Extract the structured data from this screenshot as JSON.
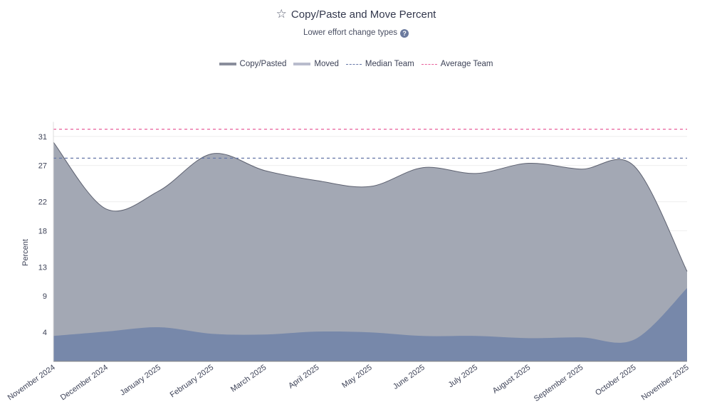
{
  "header": {
    "title": "Copy/Paste and Move Percent",
    "title_icon": "star-outline-icon",
    "subtitle": "Lower effort change types",
    "help_icon": "question-circle-icon",
    "help_glyph": "?"
  },
  "chart_data": {
    "type": "area",
    "stacked": true,
    "title": "Copy/Paste and Move Percent",
    "subtitle": "Lower effort change types",
    "xlabel": "",
    "ylabel": "Percent",
    "ylim": [
      0,
      33
    ],
    "yticks": [
      4,
      9,
      13,
      18,
      22,
      27,
      31
    ],
    "ytick_labels": [
      "4",
      "9",
      "13",
      "18",
      "22",
      "27",
      "31"
    ],
    "grid": true,
    "legend_position": "top-center",
    "categories": [
      "November 2024",
      "December 2024",
      "January 2025",
      "February 2025",
      "March 2025",
      "April 2025",
      "May 2025",
      "June 2025",
      "July 2025",
      "August 2025",
      "September 2025",
      "October 2025",
      "November 2025"
    ],
    "series": [
      {
        "name": "Moved",
        "color": "#7788aa",
        "swatch": "#b9bccd",
        "values": [
          3.5,
          4.1,
          4.7,
          3.8,
          3.7,
          4.1,
          4.0,
          3.5,
          3.5,
          3.2,
          3.3,
          3.0,
          10.1
        ]
      },
      {
        "name": "Copy/Pasted",
        "color": "#a3a8b4",
        "swatch": "#8a8e9c",
        "values": [
          26.7,
          16.9,
          18.8,
          24.8,
          22.6,
          20.8,
          20.1,
          23.2,
          22.4,
          24.1,
          23.2,
          23.9,
          2.3
        ]
      }
    ],
    "reference_lines": [
      {
        "name": "Median Team",
        "value": 28,
        "color": "#6677a8"
      },
      {
        "name": "Average Team",
        "value": 32,
        "color": "#e8609a"
      }
    ]
  }
}
